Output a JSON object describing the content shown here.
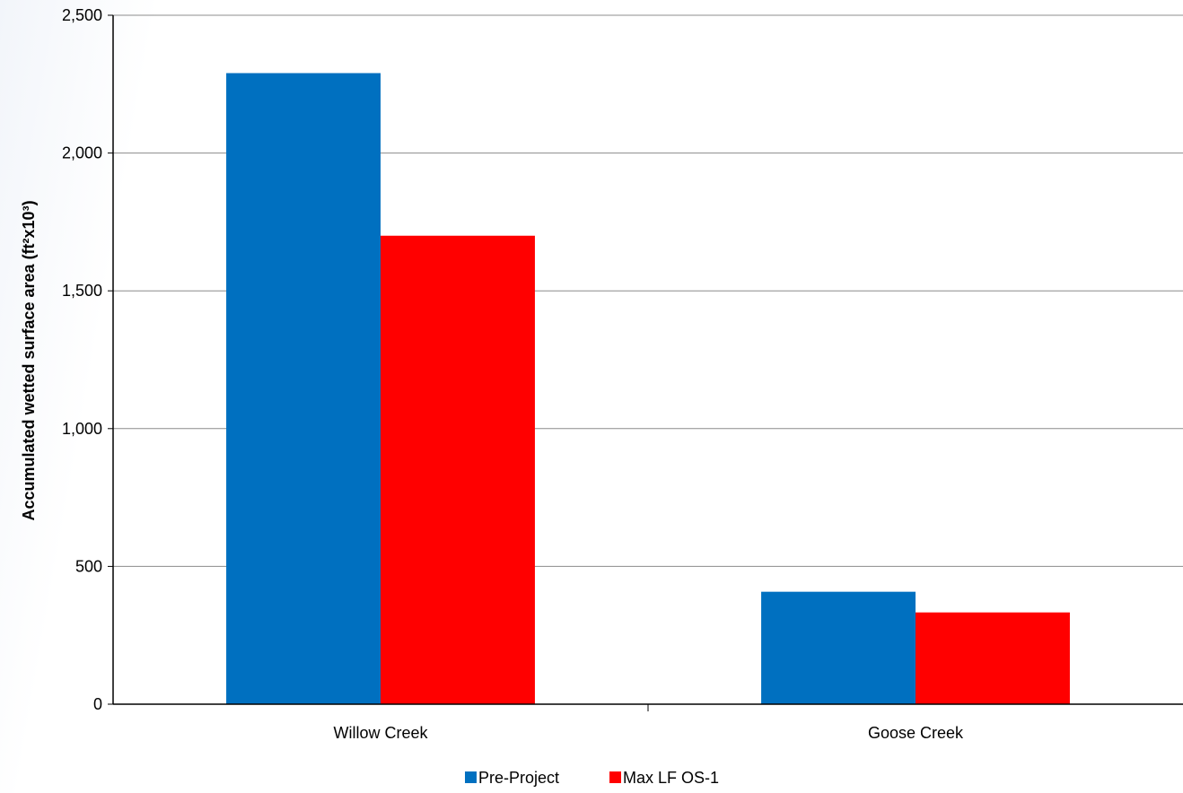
{
  "chart_data": {
    "type": "bar",
    "title": "",
    "xlabel": "",
    "ylabel": "Accumulated wetted surface area (ft²x10³)",
    "categories": [
      "Willow Creek",
      "Goose Creek"
    ],
    "series": [
      {
        "name": "Pre-Project",
        "color": "#0070C0",
        "values": [
          2290,
          408
        ]
      },
      {
        "name": "Max LF OS-1",
        "color": "#FF0000",
        "values": [
          1700,
          333
        ]
      }
    ],
    "ylim": [
      0,
      2500
    ],
    "yticks": [
      0,
      500,
      1000,
      1500,
      2000,
      2500
    ],
    "ytick_labels": [
      "0",
      "500",
      "1,000",
      "1,500",
      "2,000",
      "2,500"
    ],
    "grid": true,
    "gridline_color": "#8c8c8c",
    "legend_position": "bottom-center"
  }
}
